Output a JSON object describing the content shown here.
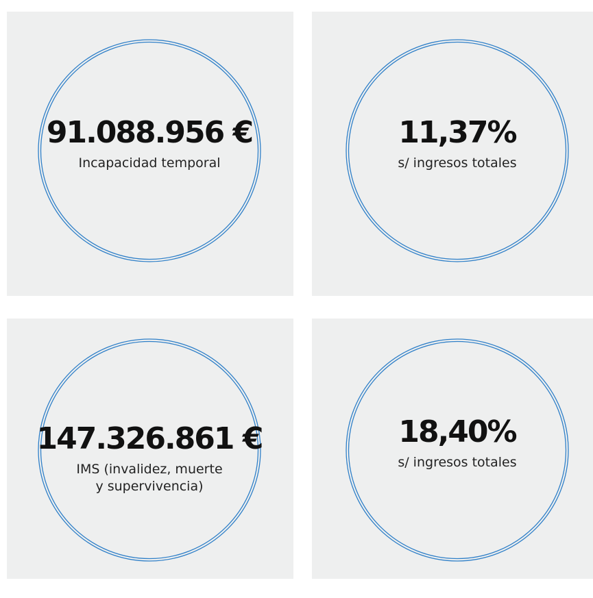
{
  "panels": [
    {
      "value": "91.088.956 €",
      "label": [
        "Incapacidad temporal"
      ]
    },
    {
      "value": "11,37%",
      "label": [
        "s/ ingresos totales"
      ]
    },
    {
      "value": "147.326.861 €",
      "label": [
        "IMS (invalidez, muerte",
        "y supervivencia)"
      ]
    },
    {
      "value": "18,40%",
      "label": [
        "s/ ingresos totales"
      ]
    }
  ]
}
